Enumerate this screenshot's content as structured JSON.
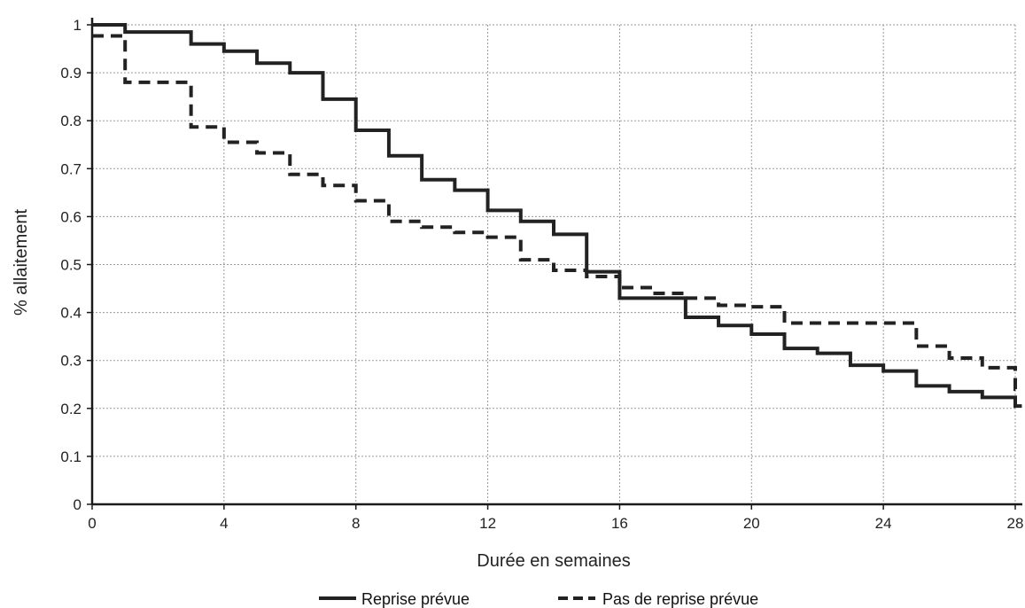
{
  "chart_data": {
    "type": "line",
    "step": true,
    "xlabel": "Durée en semaines",
    "ylabel": "% allaitement",
    "xlim": [
      0,
      28
    ],
    "ylim": [
      0,
      1
    ],
    "xticks": [
      0,
      4,
      8,
      12,
      16,
      20,
      24,
      28
    ],
    "xtick_labels": [
      "0",
      "4",
      "8",
      "12",
      "16",
      "20",
      "24",
      "28"
    ],
    "yticks": [
      0,
      0.1,
      0.2,
      0.3,
      0.4,
      0.5,
      0.6,
      0.7,
      0.8,
      0.9,
      1
    ],
    "ytick_labels": [
      "0",
      "0.1",
      "0.2",
      "0.3",
      "0.4",
      "0.5",
      "0.6",
      "0.7",
      "0.8",
      "0.9",
      "1"
    ],
    "grid": true,
    "legend_position": "bottom",
    "series": [
      {
        "name": "Reprise prévue",
        "style": "solid",
        "color": "#222222",
        "x": [
          0,
          1,
          3,
          4,
          5,
          6,
          7,
          8,
          9,
          10,
          11,
          12,
          13,
          14,
          15,
          16,
          17,
          18,
          19,
          20,
          21,
          22,
          23,
          24,
          25,
          26,
          27,
          28,
          28.2
        ],
        "y": [
          1.0,
          0.985,
          0.96,
          0.945,
          0.92,
          0.9,
          0.845,
          0.78,
          0.727,
          0.677,
          0.655,
          0.613,
          0.59,
          0.563,
          0.485,
          0.43,
          0.43,
          0.39,
          0.373,
          0.355,
          0.325,
          0.315,
          0.29,
          0.278,
          0.247,
          0.235,
          0.223,
          0.205,
          0.205
        ]
      },
      {
        "name": "Pas de reprise prévue",
        "style": "dashed",
        "color": "#222222",
        "x": [
          0,
          1,
          3,
          4,
          5,
          6,
          7,
          8,
          9,
          10,
          11,
          12,
          13,
          14,
          15,
          16,
          17,
          18,
          19,
          20,
          21,
          22,
          23,
          24,
          25,
          26,
          27,
          28,
          28.2
        ],
        "y": [
          0.977,
          0.88,
          0.787,
          0.755,
          0.733,
          0.688,
          0.665,
          0.633,
          0.59,
          0.578,
          0.567,
          0.557,
          0.51,
          0.488,
          0.475,
          0.452,
          0.44,
          0.43,
          0.415,
          0.412,
          0.378,
          0.378,
          0.378,
          0.378,
          0.33,
          0.305,
          0.285,
          0.24,
          0.24
        ]
      }
    ]
  }
}
